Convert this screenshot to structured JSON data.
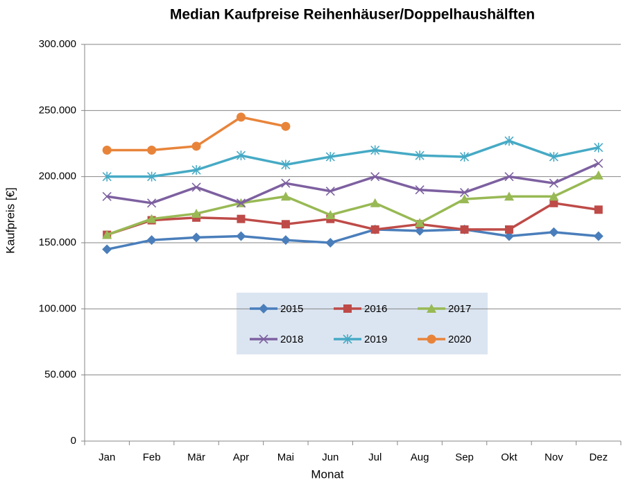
{
  "chart_data": {
    "type": "line",
    "title": "Median Kaufpreise Reihenhäuser/Doppelhaushälften",
    "x_label": "Monat",
    "y_label": "Kaufpreis [€]",
    "categories": [
      "Jan",
      "Feb",
      "Mär",
      "Apr",
      "Mai",
      "Jun",
      "Jul",
      "Aug",
      "Sep",
      "Okt",
      "Nov",
      "Dez"
    ],
    "ylim": [
      0,
      300000
    ],
    "yticks": [
      0,
      {
        "value": 50000,
        "label": "50.000"
      },
      {
        "value": 100000,
        "label": "100.000"
      },
      {
        "value": 150000,
        "label": "150.000"
      },
      {
        "value": 200000,
        "label": "200.000"
      },
      {
        "value": 250000,
        "label": "250.000"
      },
      {
        "value": 300000,
        "label": "300.000"
      }
    ],
    "grid": true,
    "series": [
      {
        "name": "2015",
        "color": "#4a7ebb",
        "marker": "diamond",
        "values": [
          145000,
          152000,
          154000,
          155000,
          152000,
          150000,
          160000,
          159000,
          160000,
          155000,
          158000,
          155000
        ]
      },
      {
        "name": "2016",
        "color": "#be4b48",
        "marker": "square",
        "values": [
          156000,
          167000,
          169000,
          168000,
          164000,
          168000,
          160000,
          164000,
          160000,
          160000,
          180000,
          175000
        ]
      },
      {
        "name": "2017",
        "color": "#98b954",
        "marker": "triangle",
        "values": [
          156000,
          168000,
          172000,
          180000,
          185000,
          171000,
          180000,
          165000,
          183000,
          185000,
          185000,
          201000
        ]
      },
      {
        "name": "2018",
        "color": "#7d60a0",
        "marker": "x",
        "values": [
          185000,
          180000,
          192000,
          180000,
          195000,
          189000,
          200000,
          190000,
          188000,
          200000,
          195000,
          210000
        ]
      },
      {
        "name": "2019",
        "color": "#46aac5",
        "marker": "star",
        "values": [
          200000,
          200000,
          205000,
          216000,
          209000,
          215000,
          220000,
          216000,
          215000,
          227000,
          215000,
          222000
        ]
      },
      {
        "name": "2020",
        "color": "#e8843a",
        "marker": "circle",
        "values": [
          220000,
          220000,
          223000,
          245000,
          238000,
          null,
          null,
          null,
          null,
          null,
          null,
          null
        ]
      }
    ]
  }
}
